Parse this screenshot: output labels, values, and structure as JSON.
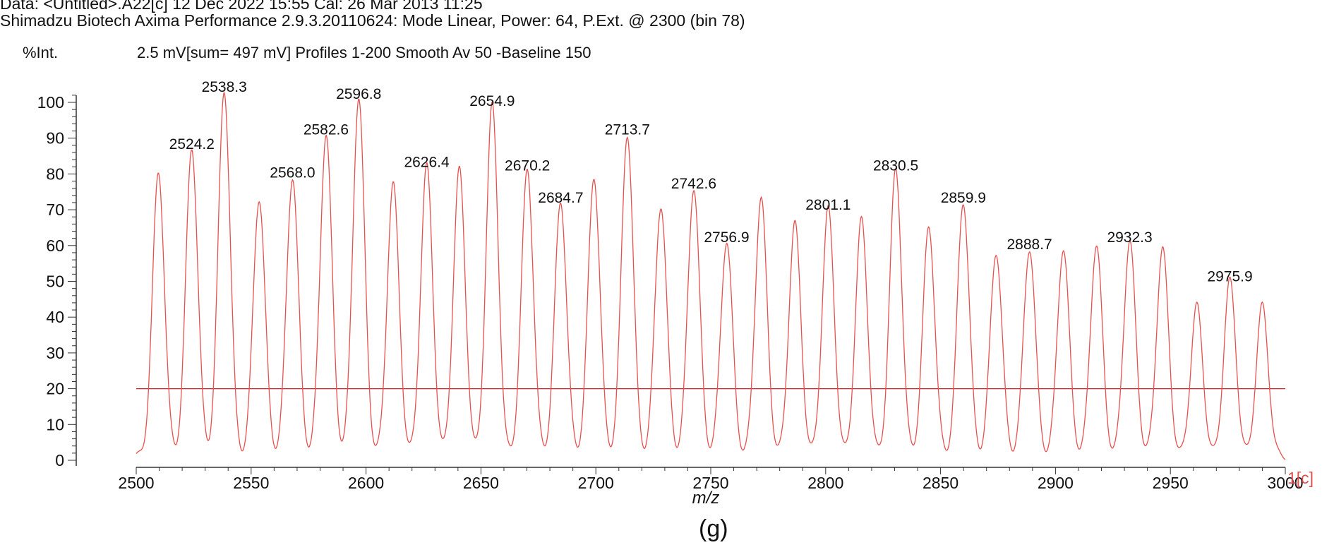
{
  "header": {
    "line1": "Data: <Untitled>.A22[c] 12 Dec 2022 15:55 Cal: 26 Mar 2013 11:25",
    "line2": "Shimadzu Biotech Axima Performance 2.9.3.20110624: Mode Linear, Power: 64, P.Ext. @ 2300 (bin 78)"
  },
  "acquisition": "2.5 mV[sum= 497 mV]  Profiles 1-200 Smooth Av 50 -Baseline 150",
  "panel_label": "(g)",
  "colors": {
    "trace": "#e8504f",
    "threshold": "#c0242a",
    "axis": "#333333",
    "channel_label": "#e0504e"
  },
  "chart_data": {
    "type": "line",
    "ylabel": "%Int.",
    "xlabel": "m/z",
    "xlim": [
      2500,
      3000
    ],
    "ylim": [
      0,
      100
    ],
    "x_ticks": [
      2500,
      2550,
      2600,
      2650,
      2700,
      2750,
      2800,
      2850,
      2900,
      2950,
      3000
    ],
    "y_ticks": [
      0,
      10,
      20,
      30,
      40,
      50,
      60,
      70,
      80,
      90,
      100
    ],
    "channel_label": "1[c]",
    "threshold": 20,
    "peaks": [
      {
        "x": 2509.7,
        "y": 79
      },
      {
        "x": 2524.2,
        "y": 86,
        "label": "2524.2"
      },
      {
        "x": 2538.3,
        "y": 102,
        "label": "2538.3"
      },
      {
        "x": 2553.5,
        "y": 72
      },
      {
        "x": 2568.0,
        "y": 78,
        "label": "2568.0"
      },
      {
        "x": 2582.6,
        "y": 90,
        "label": "2582.6"
      },
      {
        "x": 2596.8,
        "y": 100,
        "label": "2596.8"
      },
      {
        "x": 2611.8,
        "y": 76
      },
      {
        "x": 2626.4,
        "y": 81,
        "label": "2626.4"
      },
      {
        "x": 2640.6,
        "y": 80
      },
      {
        "x": 2654.9,
        "y": 98,
        "label": "2654.9"
      },
      {
        "x": 2670.2,
        "y": 80,
        "label": "2670.2"
      },
      {
        "x": 2684.7,
        "y": 71,
        "label": "2684.7"
      },
      {
        "x": 2699.2,
        "y": 78
      },
      {
        "x": 2713.7,
        "y": 90,
        "label": "2713.7"
      },
      {
        "x": 2728.3,
        "y": 70
      },
      {
        "x": 2742.6,
        "y": 75,
        "label": "2742.6"
      },
      {
        "x": 2756.9,
        "y": 60,
        "label": "2756.9"
      },
      {
        "x": 2771.9,
        "y": 72
      },
      {
        "x": 2786.6,
        "y": 65
      },
      {
        "x": 2801.1,
        "y": 69,
        "label": "2801.1"
      },
      {
        "x": 2815.6,
        "y": 66
      },
      {
        "x": 2830.5,
        "y": 80,
        "label": "2830.5"
      },
      {
        "x": 2844.9,
        "y": 64
      },
      {
        "x": 2859.9,
        "y": 71,
        "label": "2859.9"
      },
      {
        "x": 2874.2,
        "y": 57
      },
      {
        "x": 2888.7,
        "y": 58,
        "label": "2888.7"
      },
      {
        "x": 2903.4,
        "y": 58
      },
      {
        "x": 2917.8,
        "y": 59
      },
      {
        "x": 2932.3,
        "y": 60,
        "label": "2932.3"
      },
      {
        "x": 2946.6,
        "y": 58
      },
      {
        "x": 2961.5,
        "y": 42
      },
      {
        "x": 2975.9,
        "y": 49,
        "label": "2975.9"
      },
      {
        "x": 2990.0,
        "y": 42
      }
    ]
  }
}
